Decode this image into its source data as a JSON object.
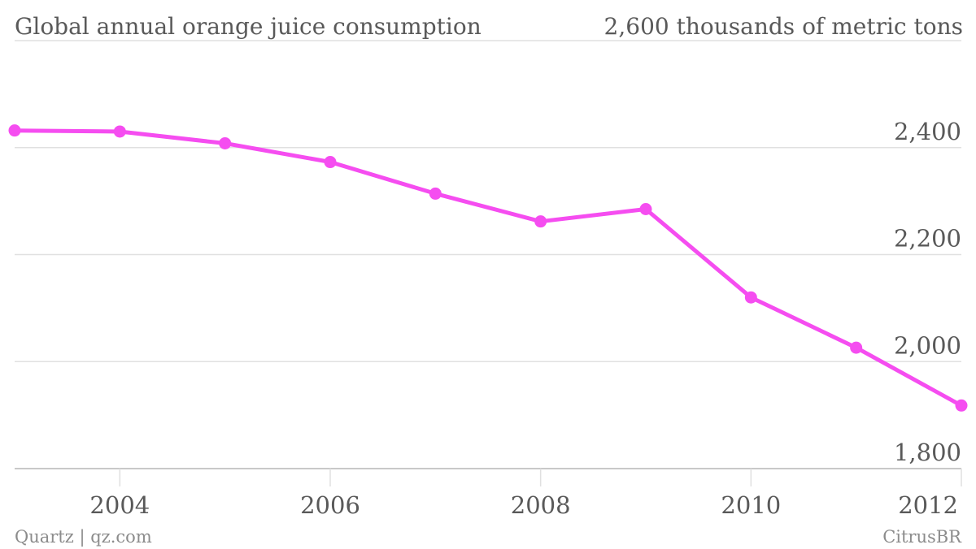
{
  "chart_data": {
    "type": "line",
    "title": "Global annual orange juice consumption",
    "y_top_label": "2,600 thousands of metric tons",
    "x": [
      2003,
      2004,
      2005,
      2006,
      2007,
      2008,
      2009,
      2010,
      2011,
      2012
    ],
    "series": [
      {
        "values": [
          2432,
          2430,
          2408,
          2373,
          2314,
          2262,
          2285,
          2120,
          2026,
          1918
        ]
      }
    ],
    "xlim": [
      2003,
      2012
    ],
    "ylim": [
      1800,
      2600
    ],
    "x_ticks": [
      {
        "value": 2004,
        "label": "2004"
      },
      {
        "value": 2006,
        "label": "2006"
      },
      {
        "value": 2008,
        "label": "2008"
      },
      {
        "value": 2010,
        "label": "2010"
      },
      {
        "value": 2012,
        "label": "2012"
      }
    ],
    "y_ticks": [
      {
        "value": 2400,
        "label": "2,400"
      },
      {
        "value": 2200,
        "label": "2,200"
      },
      {
        "value": 2000,
        "label": "2,000"
      },
      {
        "value": 1800,
        "label": "1,800"
      }
    ],
    "grid": true,
    "colors": {
      "series": "#f54df0",
      "grid": "#e0e0e0",
      "text": "#595959",
      "footer": "#8c8c8c"
    }
  },
  "footer": {
    "credit": "Quartz | qz.com",
    "source": "CitrusBR"
  }
}
